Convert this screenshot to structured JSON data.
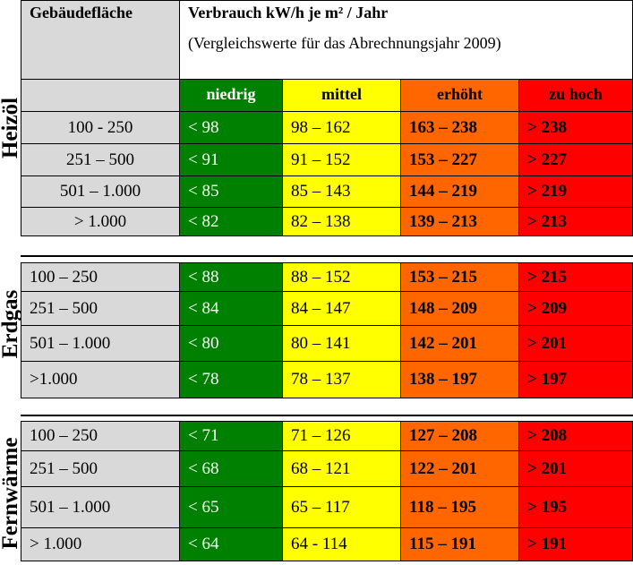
{
  "header": {
    "col_label": "Gebäudefläche",
    "title": "Verbrauch kW/h je m² / Jahr",
    "subtitle": "(Vergleichswerte für das Abrechnungsjahr 2009)",
    "levels": [
      "niedrig",
      "mittel",
      "erhöht",
      "zu hoch"
    ]
  },
  "colors": {
    "niedrig": "#008000",
    "mittel": "#ffff00",
    "erhoeht": "#ff6600",
    "zu_hoch": "#ff0000",
    "header_gray": "#d9d9d9"
  },
  "sections": [
    {
      "label": "Heizöl",
      "rows": [
        {
          "area": "100 - 250",
          "niedrig": "< 98",
          "mittel": "98 – 162",
          "erhoeht": "163 – 238",
          "zu_hoch": "> 238"
        },
        {
          "area": "251 – 500",
          "niedrig": "< 91",
          "mittel": "91 – 152",
          "erhoeht": "153 – 227",
          "zu_hoch": "> 227"
        },
        {
          "area": "501 – 1.000",
          "niedrig": "< 85",
          "mittel": "85 – 143",
          "erhoeht": "144 – 219",
          "zu_hoch": "> 219"
        },
        {
          "area": "> 1.000",
          "niedrig": "< 82",
          "mittel": "82 – 138",
          "erhoeht": "139 – 213",
          "zu_hoch": "> 213"
        }
      ]
    },
    {
      "label": "Erdgas",
      "rows": [
        {
          "area": "100 – 250",
          "niedrig": "< 88",
          "mittel": "88 – 152",
          "erhoeht": "153 – 215",
          "zu_hoch": "> 215"
        },
        {
          "area": "251 – 500",
          "niedrig": "< 84",
          "mittel": "84 – 147",
          "erhoeht": "148 – 209",
          "zu_hoch": "> 209"
        },
        {
          "area": "501 – 1.000",
          "niedrig": "< 80",
          "mittel": "80 – 141",
          "erhoeht": "142 – 201",
          "zu_hoch": "> 201"
        },
        {
          "area": ">1.000",
          "niedrig": "< 78",
          "mittel": "78 – 137",
          "erhoeht": "138 – 197",
          "zu_hoch": "> 197"
        }
      ]
    },
    {
      "label": "Fernwärme",
      "rows": [
        {
          "area": "100 – 250",
          "niedrig": "< 71",
          "mittel": "71 – 126",
          "erhoeht": "127 – 208",
          "zu_hoch": "> 208"
        },
        {
          "area": "251 – 500",
          "niedrig": "< 68",
          "mittel": "68 – 121",
          "erhoeht": "122 – 201",
          "zu_hoch": "> 201"
        },
        {
          "area": "501 – 1.000",
          "niedrig": "< 65",
          "mittel": "65 – 117",
          "erhoeht": "118 – 195",
          "zu_hoch": "> 195"
        },
        {
          "area": "> 1.000",
          "niedrig": "< 64",
          "mittel": "64 - 114",
          "erhoeht": "115 – 191",
          "zu_hoch": "> 191"
        }
      ]
    }
  ]
}
